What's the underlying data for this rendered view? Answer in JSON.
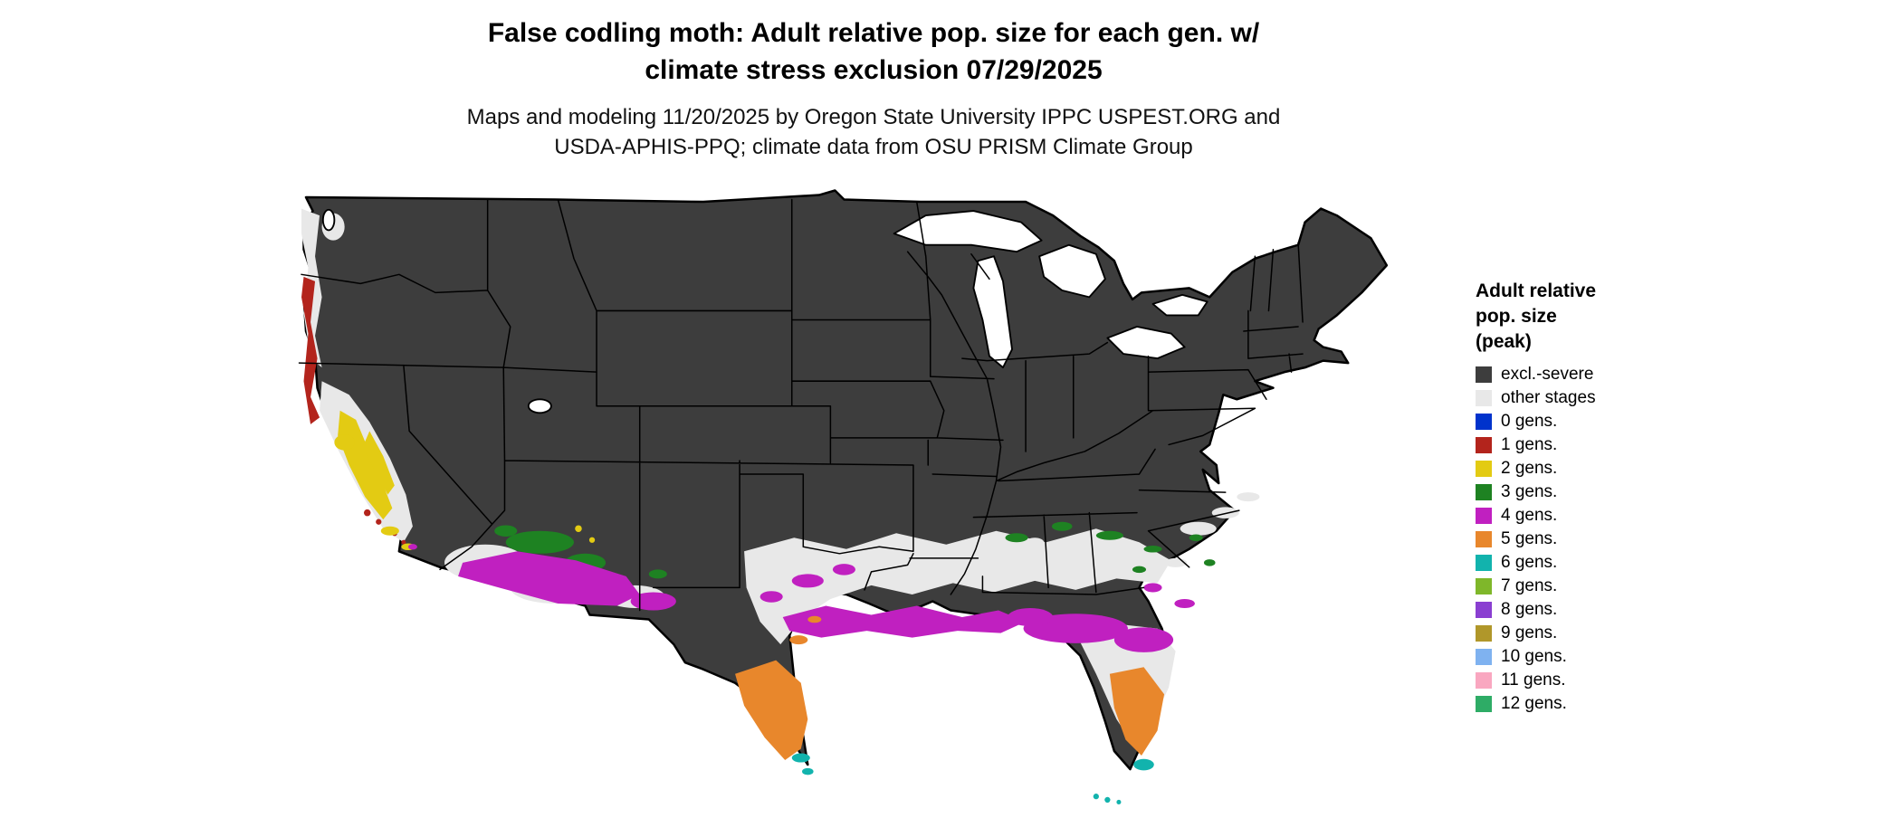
{
  "title": {
    "line1": "False codling moth: Adult relative pop. size for each gen. w/",
    "line2": "climate stress exclusion 07/29/2025"
  },
  "subtitle": {
    "line1": "Maps and modeling 11/20/2025 by Oregon State University IPPC USPEST.ORG and",
    "line2": "USDA-APHIS-PPQ; climate data from OSU PRISM Climate Group"
  },
  "legend": {
    "title_lines": [
      "Adult relative",
      "pop. size",
      "(peak)"
    ],
    "items": [
      {
        "label": "excl.-severe",
        "color": "#3d3d3d"
      },
      {
        "label": "other stages",
        "color": "#e8e8e8"
      },
      {
        "label": "0 gens.",
        "color": "#0033cc"
      },
      {
        "label": "1 gens.",
        "color": "#b3241c"
      },
      {
        "label": "2 gens.",
        "color": "#e3cb13"
      },
      {
        "label": "3 gens.",
        "color": "#1e8222"
      },
      {
        "label": "4 gens.",
        "color": "#c020c0"
      },
      {
        "label": "5 gens.",
        "color": "#e8872c"
      },
      {
        "label": "6 gens.",
        "color": "#12b3ad"
      },
      {
        "label": "7 gens.",
        "color": "#7fb72a"
      },
      {
        "label": "8 gens.",
        "color": "#8a3fd1"
      },
      {
        "label": "9 gens.",
        "color": "#b0972a"
      },
      {
        "label": "10 gens.",
        "color": "#7fb2f0"
      },
      {
        "label": "11 gens.",
        "color": "#f9a7c0"
      },
      {
        "label": "12 gens.",
        "color": "#2eac66"
      }
    ]
  },
  "map": {
    "type": "us-conus-raster-model-map",
    "base_color": "#3d3d3d",
    "regions": [
      {
        "area": "most of interior and northern US",
        "category": "excl.-severe"
      },
      {
        "area": "Pacific Northwest coast and Gulf-states lowlands",
        "category": "other stages"
      },
      {
        "area": "southern Oregon and northern California coast",
        "category": "1 gens."
      },
      {
        "area": "California Central Valley and Bay Area",
        "category": "2 gens."
      },
      {
        "area": "Arizona highlands and scattered Southeast specks",
        "category": "3 gens."
      },
      {
        "area": "southern Arizona and Gulf Coast from Louisiana to north Florida",
        "category": "4 gens."
      },
      {
        "area": "south Texas and central Florida",
        "category": "5 gens."
      },
      {
        "area": "far south Texas tip, south Florida tip and Keys",
        "category": "6 gens."
      }
    ]
  }
}
